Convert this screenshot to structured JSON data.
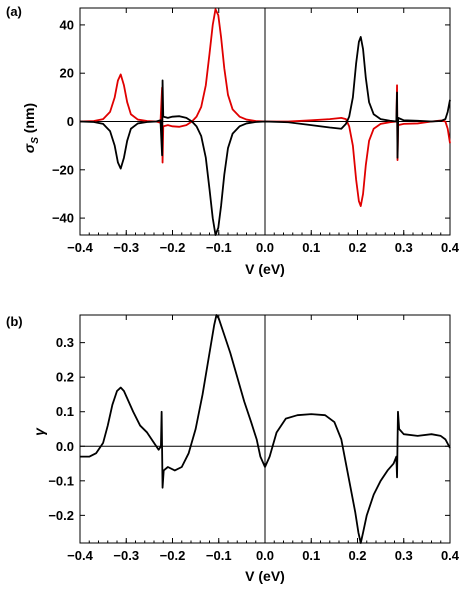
{
  "chart_data": [
    {
      "type": "line",
      "panel_label": "(a)",
      "xlabel": "V (eV)",
      "ylabel_main": "σ",
      "ylabel_sub": "S",
      "ylabel_unit": " (nm)",
      "xlim": [
        -0.4,
        0.4
      ],
      "ylim": [
        -47,
        47
      ],
      "xticks": [
        -0.4,
        -0.3,
        -0.2,
        -0.1,
        0.0,
        0.1,
        0.2,
        0.3,
        0.4
      ],
      "xtick_labels": [
        "−0.4",
        "−0.3",
        "−0.2",
        "−0.1",
        "0.0",
        "0.1",
        "0.2",
        "0.3",
        "0.4"
      ],
      "yticks": [
        -40,
        -20,
        0,
        20,
        40
      ],
      "ytick_labels": [
        "−40",
        "−20",
        "0",
        "20",
        "40"
      ],
      "grid": false,
      "series": [
        {
          "color": "#e00000",
          "points": [
            [
              -0.4,
              0.0
            ],
            [
              -0.37,
              0.2
            ],
            [
              -0.35,
              1.0
            ],
            [
              -0.335,
              4.0
            ],
            [
              -0.325,
              10.0
            ],
            [
              -0.318,
              17.0
            ],
            [
              -0.312,
              19.5
            ],
            [
              -0.305,
              15.0
            ],
            [
              -0.298,
              8.0
            ],
            [
              -0.29,
              3.0
            ],
            [
              -0.275,
              0.8
            ],
            [
              -0.255,
              0.2
            ],
            [
              -0.235,
              0.0
            ],
            [
              -0.226,
              -0.5
            ],
            [
              -0.2225,
              14.0
            ],
            [
              -0.2215,
              -17.0
            ],
            [
              -0.22,
              -2.0
            ],
            [
              -0.21,
              -1.5
            ],
            [
              -0.2,
              -2.0
            ],
            [
              -0.185,
              -2.2
            ],
            [
              -0.17,
              -1.5
            ],
            [
              -0.158,
              0.0
            ],
            [
              -0.148,
              2.0
            ],
            [
              -0.138,
              6.0
            ],
            [
              -0.128,
              15.0
            ],
            [
              -0.12,
              28.0
            ],
            [
              -0.113,
              40.0
            ],
            [
              -0.107,
              46.5
            ],
            [
              -0.101,
              44.0
            ],
            [
              -0.095,
              35.0
            ],
            [
              -0.088,
              22.0
            ],
            [
              -0.08,
              11.0
            ],
            [
              -0.07,
              5.0
            ],
            [
              -0.055,
              2.0
            ],
            [
              -0.04,
              0.8
            ],
            [
              -0.02,
              0.2
            ],
            [
              0.0,
              0.0
            ],
            [
              0.05,
              0.0
            ],
            [
              0.1,
              0.5
            ],
            [
              0.14,
              1.0
            ],
            [
              0.165,
              1.5
            ],
            [
              0.175,
              1.0
            ],
            [
              0.182,
              -2.0
            ],
            [
              0.19,
              -10.0
            ],
            [
              0.197,
              -24.0
            ],
            [
              0.203,
              -33.0
            ],
            [
              0.207,
              -35.0
            ],
            [
              0.212,
              -30.0
            ],
            [
              0.218,
              -18.0
            ],
            [
              0.225,
              -8.0
            ],
            [
              0.235,
              -3.0
            ],
            [
              0.25,
              -1.0
            ],
            [
              0.27,
              -0.3
            ],
            [
              0.284,
              0.0
            ],
            [
              0.2855,
              15.0
            ],
            [
              0.2865,
              -16.0
            ],
            [
              0.288,
              -1.5
            ],
            [
              0.3,
              -1.0
            ],
            [
              0.33,
              -0.8
            ],
            [
              0.36,
              0.0
            ],
            [
              0.38,
              0.4
            ],
            [
              0.39,
              0.0
            ],
            [
              0.395,
              -3.0
            ],
            [
              0.4,
              -9.0
            ]
          ]
        },
        {
          "color": "#000000",
          "points": [
            [
              -0.4,
              0.0
            ],
            [
              -0.37,
              -0.2
            ],
            [
              -0.35,
              -1.0
            ],
            [
              -0.335,
              -4.0
            ],
            [
              -0.325,
              -10.0
            ],
            [
              -0.318,
              -17.0
            ],
            [
              -0.312,
              -19.5
            ],
            [
              -0.305,
              -15.0
            ],
            [
              -0.298,
              -8.0
            ],
            [
              -0.29,
              -3.0
            ],
            [
              -0.275,
              -0.8
            ],
            [
              -0.255,
              -0.2
            ],
            [
              -0.235,
              0.0
            ],
            [
              -0.226,
              0.5
            ],
            [
              -0.2225,
              -14.0
            ],
            [
              -0.2215,
              17.0
            ],
            [
              -0.22,
              2.0
            ],
            [
              -0.21,
              1.5
            ],
            [
              -0.2,
              2.0
            ],
            [
              -0.185,
              2.2
            ],
            [
              -0.17,
              1.5
            ],
            [
              -0.158,
              0.0
            ],
            [
              -0.148,
              -2.0
            ],
            [
              -0.138,
              -6.0
            ],
            [
              -0.128,
              -15.0
            ],
            [
              -0.12,
              -28.0
            ],
            [
              -0.113,
              -40.0
            ],
            [
              -0.107,
              -47.0
            ],
            [
              -0.101,
              -44.0
            ],
            [
              -0.095,
              -35.0
            ],
            [
              -0.088,
              -22.0
            ],
            [
              -0.08,
              -11.0
            ],
            [
              -0.07,
              -5.0
            ],
            [
              -0.055,
              -2.0
            ],
            [
              -0.04,
              -0.8
            ],
            [
              -0.02,
              -0.2
            ],
            [
              0.0,
              0.0
            ],
            [
              0.05,
              -0.3
            ],
            [
              0.1,
              -1.5
            ],
            [
              0.14,
              -2.5
            ],
            [
              0.165,
              -3.0
            ],
            [
              0.175,
              -1.0
            ],
            [
              0.182,
              2.0
            ],
            [
              0.19,
              10.0
            ],
            [
              0.197,
              24.0
            ],
            [
              0.203,
              33.0
            ],
            [
              0.207,
              35.0
            ],
            [
              0.212,
              30.0
            ],
            [
              0.218,
              18.0
            ],
            [
              0.225,
              8.0
            ],
            [
              0.235,
              3.0
            ],
            [
              0.25,
              1.0
            ],
            [
              0.27,
              0.3
            ],
            [
              0.284,
              0.0
            ],
            [
              0.2855,
              12.0
            ],
            [
              0.2865,
              -15.0
            ],
            [
              0.288,
              1.5
            ],
            [
              0.3,
              0.5
            ],
            [
              0.33,
              0.3
            ],
            [
              0.36,
              0.0
            ],
            [
              0.38,
              0.2
            ],
            [
              0.39,
              1.0
            ],
            [
              0.395,
              4.0
            ],
            [
              0.4,
              9.0
            ]
          ]
        }
      ]
    },
    {
      "type": "line",
      "panel_label": "(b)",
      "xlabel": "V (eV)",
      "ylabel_main": "γ",
      "xlim": [
        -0.4,
        0.4
      ],
      "ylim": [
        -0.28,
        0.38
      ],
      "xticks": [
        -0.4,
        -0.3,
        -0.2,
        -0.1,
        0.0,
        0.1,
        0.2,
        0.3,
        0.4
      ],
      "xtick_labels": [
        "−0.4",
        "−0.3",
        "−0.2",
        "−0.1",
        "0.0",
        "0.1",
        "0.2",
        "0.3",
        "0.4"
      ],
      "yticks": [
        -0.2,
        -0.1,
        0.0,
        0.1,
        0.2,
        0.3
      ],
      "ytick_labels": [
        "−0.2",
        "−0.1",
        "0.0",
        "0.1",
        "0.2",
        "0.3"
      ],
      "grid": false,
      "series": [
        {
          "color": "#000000",
          "points": [
            [
              -0.4,
              -0.03
            ],
            [
              -0.38,
              -0.03
            ],
            [
              -0.365,
              -0.02
            ],
            [
              -0.35,
              0.01
            ],
            [
              -0.34,
              0.06
            ],
            [
              -0.33,
              0.12
            ],
            [
              -0.32,
              0.16
            ],
            [
              -0.312,
              0.17
            ],
            [
              -0.305,
              0.16
            ],
            [
              -0.295,
              0.13
            ],
            [
              -0.285,
              0.1
            ],
            [
              -0.27,
              0.06
            ],
            [
              -0.255,
              0.04
            ],
            [
              -0.24,
              0.01
            ],
            [
              -0.23,
              -0.01
            ],
            [
              -0.225,
              0.0
            ],
            [
              -0.2235,
              0.1
            ],
            [
              -0.2215,
              -0.12
            ],
            [
              -0.219,
              -0.07
            ],
            [
              -0.21,
              -0.06
            ],
            [
              -0.195,
              -0.07
            ],
            [
              -0.18,
              -0.06
            ],
            [
              -0.165,
              -0.02
            ],
            [
              -0.15,
              0.05
            ],
            [
              -0.135,
              0.15
            ],
            [
              -0.12,
              0.27
            ],
            [
              -0.11,
              0.35
            ],
            [
              -0.105,
              0.38
            ],
            [
              -0.1,
              0.37
            ],
            [
              -0.09,
              0.33
            ],
            [
              -0.075,
              0.27
            ],
            [
              -0.06,
              0.2
            ],
            [
              -0.045,
              0.13
            ],
            [
              -0.03,
              0.07
            ],
            [
              -0.018,
              0.02
            ],
            [
              -0.01,
              -0.03
            ],
            [
              0.0,
              -0.06
            ],
            [
              0.01,
              -0.03
            ],
            [
              0.025,
              0.04
            ],
            [
              0.045,
              0.08
            ],
            [
              0.07,
              0.09
            ],
            [
              0.1,
              0.093
            ],
            [
              0.13,
              0.09
            ],
            [
              0.15,
              0.07
            ],
            [
              0.165,
              0.02
            ],
            [
              0.175,
              -0.05
            ],
            [
              0.185,
              -0.12
            ],
            [
              0.195,
              -0.19
            ],
            [
              0.202,
              -0.25
            ],
            [
              0.207,
              -0.28
            ],
            [
              0.212,
              -0.25
            ],
            [
              0.22,
              -0.2
            ],
            [
              0.235,
              -0.14
            ],
            [
              0.25,
              -0.1
            ],
            [
              0.265,
              -0.07
            ],
            [
              0.278,
              -0.05
            ],
            [
              0.284,
              -0.03
            ],
            [
              0.2855,
              -0.09
            ],
            [
              0.2875,
              0.1
            ],
            [
              0.29,
              0.05
            ],
            [
              0.3,
              0.035
            ],
            [
              0.33,
              0.03
            ],
            [
              0.36,
              0.035
            ],
            [
              0.38,
              0.03
            ],
            [
              0.39,
              0.02
            ],
            [
              0.4,
              -0.005
            ]
          ]
        }
      ]
    }
  ]
}
